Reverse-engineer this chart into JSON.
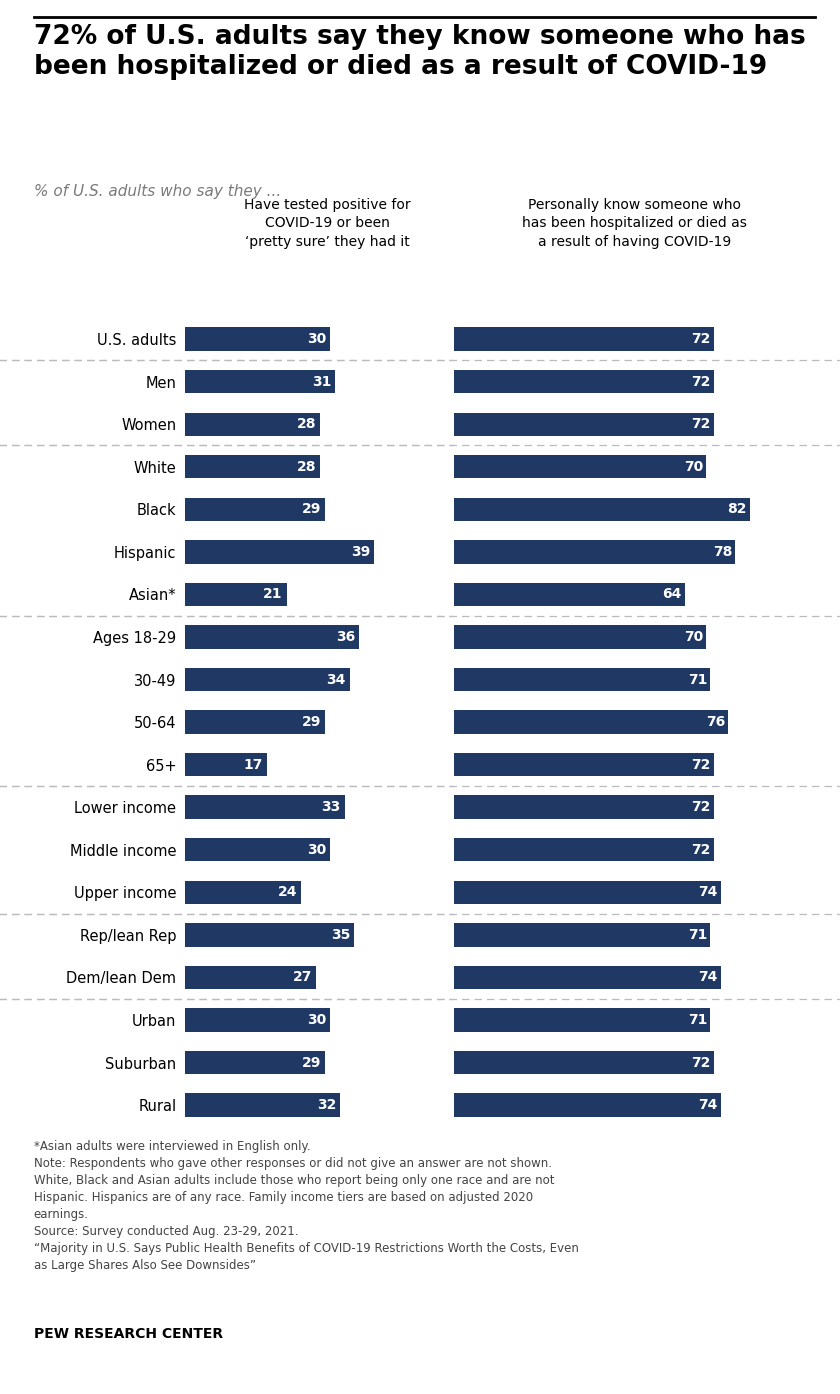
{
  "title": "72% of U.S. adults say they know someone who has\nbeen hospitalized or died as a result of COVID-19",
  "subtitle": "% of U.S. adults who say they ...",
  "col1_header": "Have tested positive for\nCOVID-19 or been\n‘pretty sure’ they had it",
  "col2_header": "Personally know someone who\nhas been hospitalized or died as\na result of having COVID-19",
  "categories": [
    "U.S. adults",
    "Men",
    "Women",
    "White",
    "Black",
    "Hispanic",
    "Asian*",
    "Ages 18-29",
    "30-49",
    "50-64",
    "65+",
    "Lower income",
    "Middle income",
    "Upper income",
    "Rep/lean Rep",
    "Dem/lean Dem",
    "Urban",
    "Suburban",
    "Rural"
  ],
  "values_left": [
    30,
    31,
    28,
    28,
    29,
    39,
    21,
    36,
    34,
    29,
    17,
    33,
    30,
    24,
    35,
    27,
    30,
    29,
    32
  ],
  "values_right": [
    72,
    72,
    72,
    70,
    82,
    78,
    64,
    70,
    71,
    76,
    72,
    72,
    72,
    74,
    71,
    74,
    71,
    72,
    74
  ],
  "bar_color": "#1F3864",
  "bar_height": 0.55,
  "dividers_after": [
    0,
    2,
    6,
    10,
    13,
    15
  ],
  "footnote": "*Asian adults were interviewed in English only.\nNote: Respondents who gave other responses or did not give an answer are not shown.\nWhite, Black and Asian adults include those who report being only one race and are not\nHispanic. Hispanics are of any race. Family income tiers are based on adjusted 2020\nearnings.\nSource: Survey conducted Aug. 23-29, 2021.\n“Majority in U.S. Says Public Health Benefits of COVID-19 Restrictions Worth the Costs, Even\nas Large Shares Also See Downsides”",
  "pew": "PEW RESEARCH CENTER",
  "bg_color": "#ffffff",
  "text_color": "#000000",
  "label_color": "#ffffff",
  "divider_color": "#bbbbbb"
}
